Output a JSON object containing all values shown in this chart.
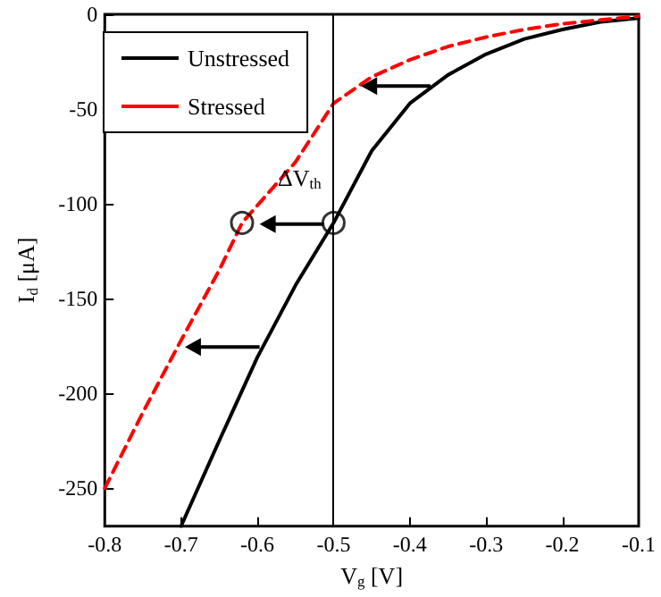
{
  "chart_data": {
    "type": "line",
    "xlabel": "V$_{g}$ [V]",
    "ylabel": "I$_{d}$ [μA]",
    "xlim": [
      -0.8,
      -0.1
    ],
    "xticks": [
      -0.8,
      -0.7,
      -0.6,
      -0.5,
      -0.4,
      -0.3,
      -0.2,
      -0.1
    ],
    "ylim": [
      -270,
      0
    ],
    "yticks": [
      -250,
      -200,
      -150,
      -100,
      -50,
      0
    ],
    "grid": false,
    "legend": "top left",
    "marker": "none",
    "series": [
      {
        "name": "Unstressed",
        "color": "#000000",
        "line_style": "solid",
        "x": [
          -0.7,
          -0.65,
          -0.6,
          -0.55,
          -0.5,
          -0.45,
          -0.4,
          -0.35,
          -0.3,
          -0.25,
          -0.2,
          -0.15,
          -0.1
        ],
        "values": [
          -270,
          -225,
          -181,
          -143,
          -110,
          -72,
          -47,
          -32,
          -21,
          -13,
          -8,
          -4,
          -2
        ]
      },
      {
        "name": "Stressed",
        "color": "#ff0000",
        "line_style": "dashed",
        "x": [
          -0.8,
          -0.75,
          -0.7,
          -0.65,
          -0.62,
          -0.55,
          -0.5,
          -0.45,
          -0.4,
          -0.35,
          -0.3,
          -0.25,
          -0.2,
          -0.15,
          -0.1
        ],
        "values": [
          -250,
          -210,
          -172,
          -135,
          -110,
          -78,
          -47,
          -33,
          -24,
          -17,
          -12,
          -8,
          -5,
          -3,
          -1
        ]
      },
      {
        "type": "scatter",
        "color": "#000000",
        "marker": "circle",
        "x": [
          -0.62,
          -0.5
        ],
        "values": [
          -110,
          -110
        ]
      }
    ],
    "ref_lines": [
      {
        "axis": "x",
        "value": -0.5,
        "color": "#000000",
        "line_style": "solid"
      }
    ],
    "annotations": [
      "ΔV$_{th}$"
    ]
  }
}
